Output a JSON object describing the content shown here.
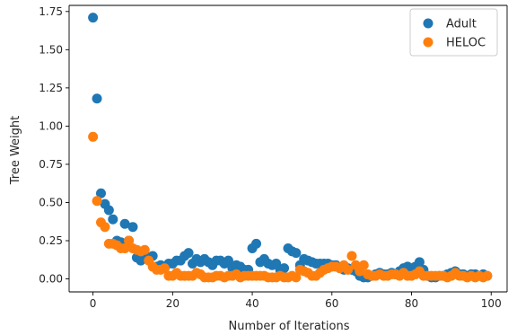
{
  "chart_data": {
    "type": "scatter",
    "xlabel": "Number of Iterations",
    "ylabel": "Tree Weight",
    "xlim": [
      -6,
      104
    ],
    "ylim": [
      -0.085,
      1.79
    ],
    "xticks": [
      0,
      20,
      40,
      60,
      80,
      100
    ],
    "xtick_labels": [
      "0",
      "20",
      "40",
      "60",
      "80",
      "100"
    ],
    "yticks": [
      0.0,
      0.25,
      0.5,
      0.75,
      1.0,
      1.25,
      1.5,
      1.75
    ],
    "ytick_labels": [
      "0.00",
      "0.25",
      "0.50",
      "0.75",
      "1.00",
      "1.25",
      "1.50",
      "1.75"
    ],
    "grid": false,
    "legend_position": "top-right",
    "series": [
      {
        "name": "Adult",
        "color": "#1f77b4",
        "x": [
          0,
          1,
          2,
          3,
          4,
          5,
          6,
          7,
          8,
          9,
          10,
          11,
          12,
          13,
          14,
          15,
          16,
          17,
          18,
          19,
          20,
          21,
          22,
          23,
          24,
          25,
          26,
          27,
          28,
          29,
          30,
          31,
          32,
          33,
          34,
          35,
          36,
          37,
          38,
          39,
          40,
          41,
          42,
          43,
          44,
          45,
          46,
          47,
          48,
          49,
          50,
          51,
          52,
          53,
          54,
          55,
          56,
          57,
          58,
          59,
          60,
          61,
          62,
          63,
          64,
          65,
          66,
          67,
          68,
          69,
          70,
          71,
          72,
          73,
          74,
          75,
          76,
          77,
          78,
          79,
          80,
          81,
          82,
          83,
          84,
          85,
          86,
          87,
          88,
          89,
          90,
          91,
          92,
          93,
          94,
          95,
          96,
          97,
          98,
          99
        ],
        "y": [
          1.71,
          1.18,
          0.56,
          0.49,
          0.45,
          0.39,
          0.25,
          0.24,
          0.36,
          0.25,
          0.34,
          0.14,
          0.12,
          0.15,
          0.14,
          0.15,
          0.08,
          0.09,
          0.07,
          0.1,
          0.1,
          0.12,
          0.12,
          0.15,
          0.17,
          0.1,
          0.13,
          0.11,
          0.13,
          0.11,
          0.09,
          0.12,
          0.12,
          0.1,
          0.12,
          0.07,
          0.09,
          0.08,
          0.06,
          0.06,
          0.2,
          0.23,
          0.11,
          0.13,
          0.1,
          0.09,
          0.1,
          0.06,
          0.07,
          0.2,
          0.18,
          0.17,
          0.09,
          0.13,
          0.12,
          0.11,
          0.1,
          0.1,
          0.1,
          0.1,
          0.09,
          0.09,
          0.07,
          0.06,
          0.07,
          0.06,
          0.05,
          0.02,
          0.01,
          0.01,
          0.02,
          0.03,
          0.04,
          0.03,
          0.03,
          0.04,
          0.03,
          0.05,
          0.07,
          0.08,
          0.07,
          0.08,
          0.11,
          0.06,
          0.02,
          0.01,
          0.01,
          0.02,
          0.02,
          0.03,
          0.04,
          0.05,
          0.03,
          0.03,
          0.02,
          0.03,
          0.03,
          0.02,
          0.03,
          0.02
        ]
      },
      {
        "name": "HELOC",
        "color": "#ff7f0e",
        "x": [
          0,
          1,
          2,
          3,
          4,
          5,
          6,
          7,
          8,
          9,
          10,
          11,
          12,
          13,
          14,
          15,
          16,
          17,
          18,
          19,
          20,
          21,
          22,
          23,
          24,
          25,
          26,
          27,
          28,
          29,
          30,
          31,
          32,
          33,
          34,
          35,
          36,
          37,
          38,
          39,
          40,
          41,
          42,
          43,
          44,
          45,
          46,
          47,
          48,
          49,
          50,
          51,
          52,
          53,
          54,
          55,
          56,
          57,
          58,
          59,
          60,
          61,
          62,
          63,
          64,
          65,
          66,
          67,
          68,
          69,
          70,
          71,
          72,
          73,
          74,
          75,
          76,
          77,
          78,
          79,
          80,
          81,
          82,
          83,
          84,
          85,
          86,
          87,
          88,
          89,
          90,
          91,
          92,
          93,
          94,
          95,
          96,
          97,
          98,
          99
        ],
        "y": [
          0.93,
          0.51,
          0.37,
          0.34,
          0.23,
          0.23,
          0.22,
          0.2,
          0.2,
          0.25,
          0.2,
          0.19,
          0.18,
          0.19,
          0.12,
          0.08,
          0.06,
          0.06,
          0.07,
          0.02,
          0.02,
          0.04,
          0.02,
          0.02,
          0.02,
          0.02,
          0.04,
          0.03,
          0.01,
          0.01,
          0.01,
          0.02,
          0.02,
          0.01,
          0.02,
          0.02,
          0.03,
          0.01,
          0.02,
          0.02,
          0.02,
          0.02,
          0.02,
          0.02,
          0.01,
          0.01,
          0.01,
          0.02,
          0.01,
          0.01,
          0.02,
          0.01,
          0.06,
          0.05,
          0.04,
          0.02,
          0.02,
          0.04,
          0.06,
          0.07,
          0.08,
          0.08,
          0.07,
          0.09,
          0.06,
          0.15,
          0.09,
          0.05,
          0.09,
          0.03,
          0.02,
          0.02,
          0.03,
          0.02,
          0.02,
          0.03,
          0.03,
          0.02,
          0.04,
          0.02,
          0.02,
          0.03,
          0.05,
          0.02,
          0.02,
          0.02,
          0.02,
          0.02,
          0.02,
          0.01,
          0.02,
          0.04,
          0.02,
          0.02,
          0.01,
          0.02,
          0.01,
          0.02,
          0.01,
          0.02
        ]
      }
    ]
  }
}
